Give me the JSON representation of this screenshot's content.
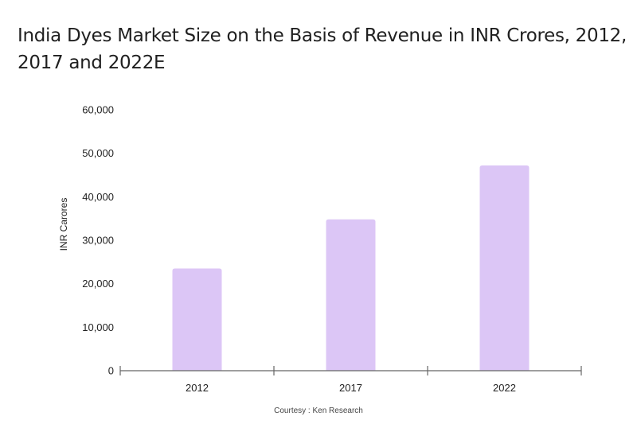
{
  "chart_data": {
    "type": "bar",
    "title": "India Dyes Market Size on the Basis of Revenue in INR Crores, 2012, 2017 and 2022E",
    "categories": [
      "2012",
      "2017",
      "2022"
    ],
    "values": [
      23500,
      34800,
      47200
    ],
    "xlabel": "",
    "ylabel": "INR Carores",
    "ylim": [
      0,
      60000
    ],
    "yticks": [
      0,
      10000,
      20000,
      30000,
      40000,
      50000,
      60000
    ],
    "ytick_labels": [
      "0",
      "10,000",
      "20,000",
      "30,000",
      "40,000",
      "50,000",
      "60,000"
    ],
    "grid": false,
    "legend": "none",
    "bar_color": "#dcc6f6",
    "axis_color": "#666666",
    "caption": "Courtesy : Ken Research"
  }
}
